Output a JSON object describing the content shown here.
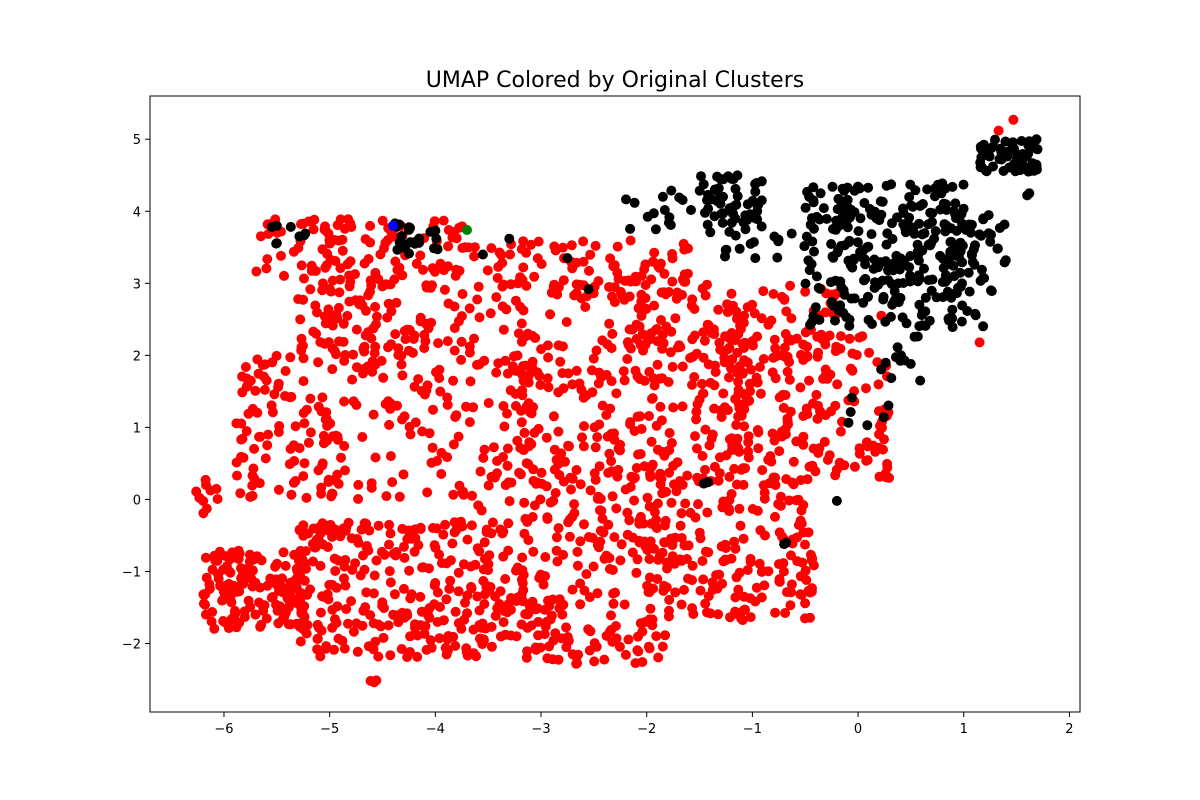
{
  "chart_data": {
    "type": "scatter",
    "title": "UMAP Colored by Original Clusters",
    "xlabel": "",
    "ylabel": "",
    "xlim": [
      -6.7,
      2.1
    ],
    "ylim": [
      -2.95,
      5.6
    ],
    "xticks": [
      -6,
      -5,
      -4,
      -3,
      -2,
      -1,
      0,
      1,
      2
    ],
    "yticks": [
      -2,
      -1,
      0,
      1,
      2,
      3,
      4,
      5
    ],
    "xtick_labels": [
      "−6",
      "−5",
      "−4",
      "−3",
      "−2",
      "−1",
      "0",
      "1",
      "2"
    ],
    "ytick_labels": [
      "−2",
      "−1",
      "0",
      "1",
      "2",
      "3",
      "4",
      "5"
    ],
    "grid": false,
    "legend": "none",
    "point_groups": [
      {
        "color": "#ff0000",
        "regions": [
          {
            "kind": "box",
            "x": [
              -5.7,
              -3.6
            ],
            "y": [
              3.1,
              3.9
            ],
            "n": 90
          },
          {
            "kind": "box",
            "x": [
              -5.3,
              -3.6
            ],
            "y": [
              2.0,
              3.2
            ],
            "n": 130
          },
          {
            "kind": "box",
            "x": [
              -3.6,
              -1.6
            ],
            "y": [
              2.3,
              3.6
            ],
            "n": 140
          },
          {
            "kind": "box",
            "x": [
              -1.6,
              -0.2
            ],
            "y": [
              1.9,
              3.0
            ],
            "n": 80
          },
          {
            "kind": "box",
            "x": [
              -5.9,
              -3.0
            ],
            "y": [
              0.0,
              2.0
            ],
            "n": 220
          },
          {
            "kind": "box",
            "x": [
              -3.2,
              -1.0
            ],
            "y": [
              0.2,
              2.3
            ],
            "n": 240
          },
          {
            "kind": "box",
            "x": [
              -1.2,
              0.3
            ],
            "y": [
              0.2,
              2.3
            ],
            "n": 170
          },
          {
            "kind": "box",
            "x": [
              -6.2,
              -5.2
            ],
            "y": [
              -1.8,
              -0.7
            ],
            "n": 150
          },
          {
            "kind": "box",
            "x": [
              -5.3,
              -3.5
            ],
            "y": [
              -2.2,
              -0.3
            ],
            "n": 240
          },
          {
            "kind": "box",
            "x": [
              -3.6,
              -1.8
            ],
            "y": [
              -2.3,
              0.4
            ],
            "n": 260
          },
          {
            "kind": "box",
            "x": [
              -2.0,
              -0.4
            ],
            "y": [
              -1.7,
              0.3
            ],
            "n": 180
          },
          {
            "kind": "box",
            "x": [
              -6.3,
              -6.0
            ],
            "y": [
              -0.2,
              0.3
            ],
            "n": 10
          },
          {
            "kind": "box",
            "x": [
              -5.9,
              -5.6
            ],
            "y": [
              0.8,
              1.9
            ],
            "n": 15
          },
          {
            "kind": "box",
            "x": [
              -4.62,
              -4.55
            ],
            "y": [
              -2.55,
              -2.45
            ],
            "n": 3
          }
        ],
        "points": [
          [
            1.47,
            5.27
          ],
          [
            1.33,
            5.12
          ],
          [
            0.25,
            1.25
          ],
          [
            1.15,
            2.18
          ],
          [
            0.22,
            2.55
          ]
        ]
      },
      {
        "color": "#000000",
        "regions": [
          {
            "kind": "box",
            "x": [
              -0.5,
              1.0
            ],
            "y": [
              2.4,
              4.4
            ],
            "n": 260
          },
          {
            "kind": "box",
            "x": [
              0.8,
              1.4
            ],
            "y": [
              2.3,
              4.0
            ],
            "n": 60
          },
          {
            "kind": "box",
            "x": [
              -1.5,
              -0.9
            ],
            "y": [
              3.7,
              4.5
            ],
            "n": 60
          },
          {
            "kind": "box",
            "x": [
              -2.3,
              -1.5
            ],
            "y": [
              3.7,
              4.3
            ],
            "n": 15
          },
          {
            "kind": "box",
            "x": [
              -1.3,
              -0.5
            ],
            "y": [
              3.3,
              3.7
            ],
            "n": 15
          },
          {
            "kind": "box",
            "x": [
              1.15,
              1.7
            ],
            "y": [
              4.55,
              5.0
            ],
            "n": 55
          },
          {
            "kind": "box",
            "x": [
              -4.4,
              -3.9
            ],
            "y": [
              3.4,
              3.85
            ],
            "n": 22
          },
          {
            "kind": "box",
            "x": [
              -5.6,
              -5.2
            ],
            "y": [
              3.55,
              3.8
            ],
            "n": 8
          },
          {
            "kind": "box",
            "x": [
              0.1,
              0.6
            ],
            "y": [
              1.6,
              2.4
            ],
            "n": 12
          },
          {
            "kind": "box",
            "x": [
              -0.1,
              0.3
            ],
            "y": [
              0.9,
              1.5
            ],
            "n": 6
          }
        ],
        "points": [
          [
            -0.7,
            -0.62
          ],
          [
            -0.68,
            -0.6
          ],
          [
            -1.42,
            0.24
          ],
          [
            -1.46,
            0.22
          ],
          [
            -3.3,
            3.62
          ],
          [
            -3.55,
            3.4
          ],
          [
            -2.75,
            3.35
          ],
          [
            -2.55,
            2.92
          ],
          [
            1.6,
            4.22
          ],
          [
            1.62,
            4.25
          ],
          [
            -0.2,
            -0.02
          ]
        ]
      },
      {
        "color": "#0000ff",
        "regions": [],
        "points": [
          [
            -4.4,
            3.8
          ]
        ]
      },
      {
        "color": "#008000",
        "regions": [],
        "points": [
          [
            -3.7,
            3.74
          ]
        ]
      }
    ]
  }
}
